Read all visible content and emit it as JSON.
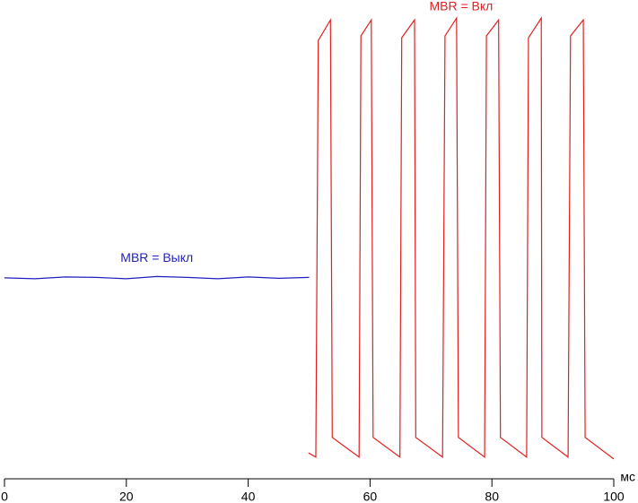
{
  "chart_data": {
    "type": "line",
    "x_label": "мс",
    "xlim": [
      0,
      100
    ],
    "xticks": [
      0,
      20,
      40,
      60,
      80,
      100
    ],
    "ylim": [
      0,
      100
    ],
    "series": [
      {
        "name": "MBR = Выкл",
        "color": "#1f1fbf",
        "x": [
          0,
          5,
          10,
          15,
          20,
          25,
          30,
          35,
          40,
          45,
          50
        ],
        "values": [
          41.2,
          41.0,
          41.4,
          41.3,
          41.0,
          41.5,
          41.3,
          41.0,
          41.4,
          41.1,
          41.3
        ]
      },
      {
        "name": "MBR = Вкл",
        "color": "#e02020",
        "x": [
          49.9,
          51.1,
          51.5,
          53.5,
          53.8,
          58.2,
          58.5,
          60.2,
          60.5,
          64.9,
          65.2,
          67.3,
          67.5,
          71.9,
          72.3,
          74.2,
          74.5,
          78.8,
          79.1,
          81.1,
          81.4,
          85.7,
          86.0,
          88.1,
          88.2,
          92.5,
          92.9,
          95.0,
          95.3,
          100
        ],
        "values": [
          2.9,
          2.0,
          93.1,
          97.6,
          6.3,
          2.0,
          94.1,
          97.6,
          6.3,
          2.0,
          93.7,
          97.6,
          6.3,
          2.0,
          94.1,
          98.0,
          6.3,
          2.0,
          94.1,
          97.6,
          6.3,
          2.0,
          93.7,
          98.0,
          6.3,
          2.0,
          94.1,
          97.6,
          6.3,
          1.6
        ]
      }
    ]
  }
}
